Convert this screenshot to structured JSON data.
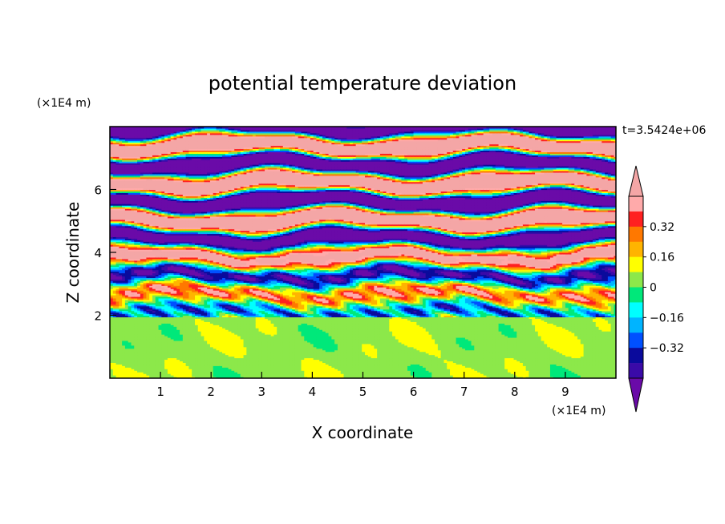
{
  "chart_data": {
    "type": "heatmap",
    "title": "potential temperature deviation",
    "xlabel": "X coordinate",
    "ylabel": "Z coordinate",
    "x_unit": "(×1E4 m)",
    "y_unit": "(×1E4 m)",
    "time_label": "t=3.5424e+06",
    "xlim": [
      0,
      10
    ],
    "ylim": [
      0,
      8
    ],
    "x_ticks": [
      1,
      2,
      3,
      4,
      5,
      6,
      7,
      8,
      9
    ],
    "y_ticks": [
      2,
      4,
      6
    ],
    "colorbar": {
      "levels": [
        -0.48,
        -0.4,
        -0.32,
        -0.24,
        -0.16,
        -0.08,
        0,
        0.08,
        0.16,
        0.24,
        0.32,
        0.4,
        0.48
      ],
      "tick_labels": [
        "0.32",
        "0.16",
        "0",
        "−0.16",
        "−0.32"
      ],
      "tick_values": [
        0.32,
        0.16,
        0,
        -0.16,
        -0.32
      ],
      "colors": [
        "#6a0aa8",
        "#3a0aa8",
        "#0a0a9c",
        "#0050ff",
        "#00b4ff",
        "#00ffff",
        "#00e87a",
        "#8ce84a",
        "#ffff00",
        "#ffb400",
        "#ff7800",
        "#ff2020",
        "#ffaaaa",
        "#f4a6a6"
      ],
      "extend": "both"
    }
  }
}
